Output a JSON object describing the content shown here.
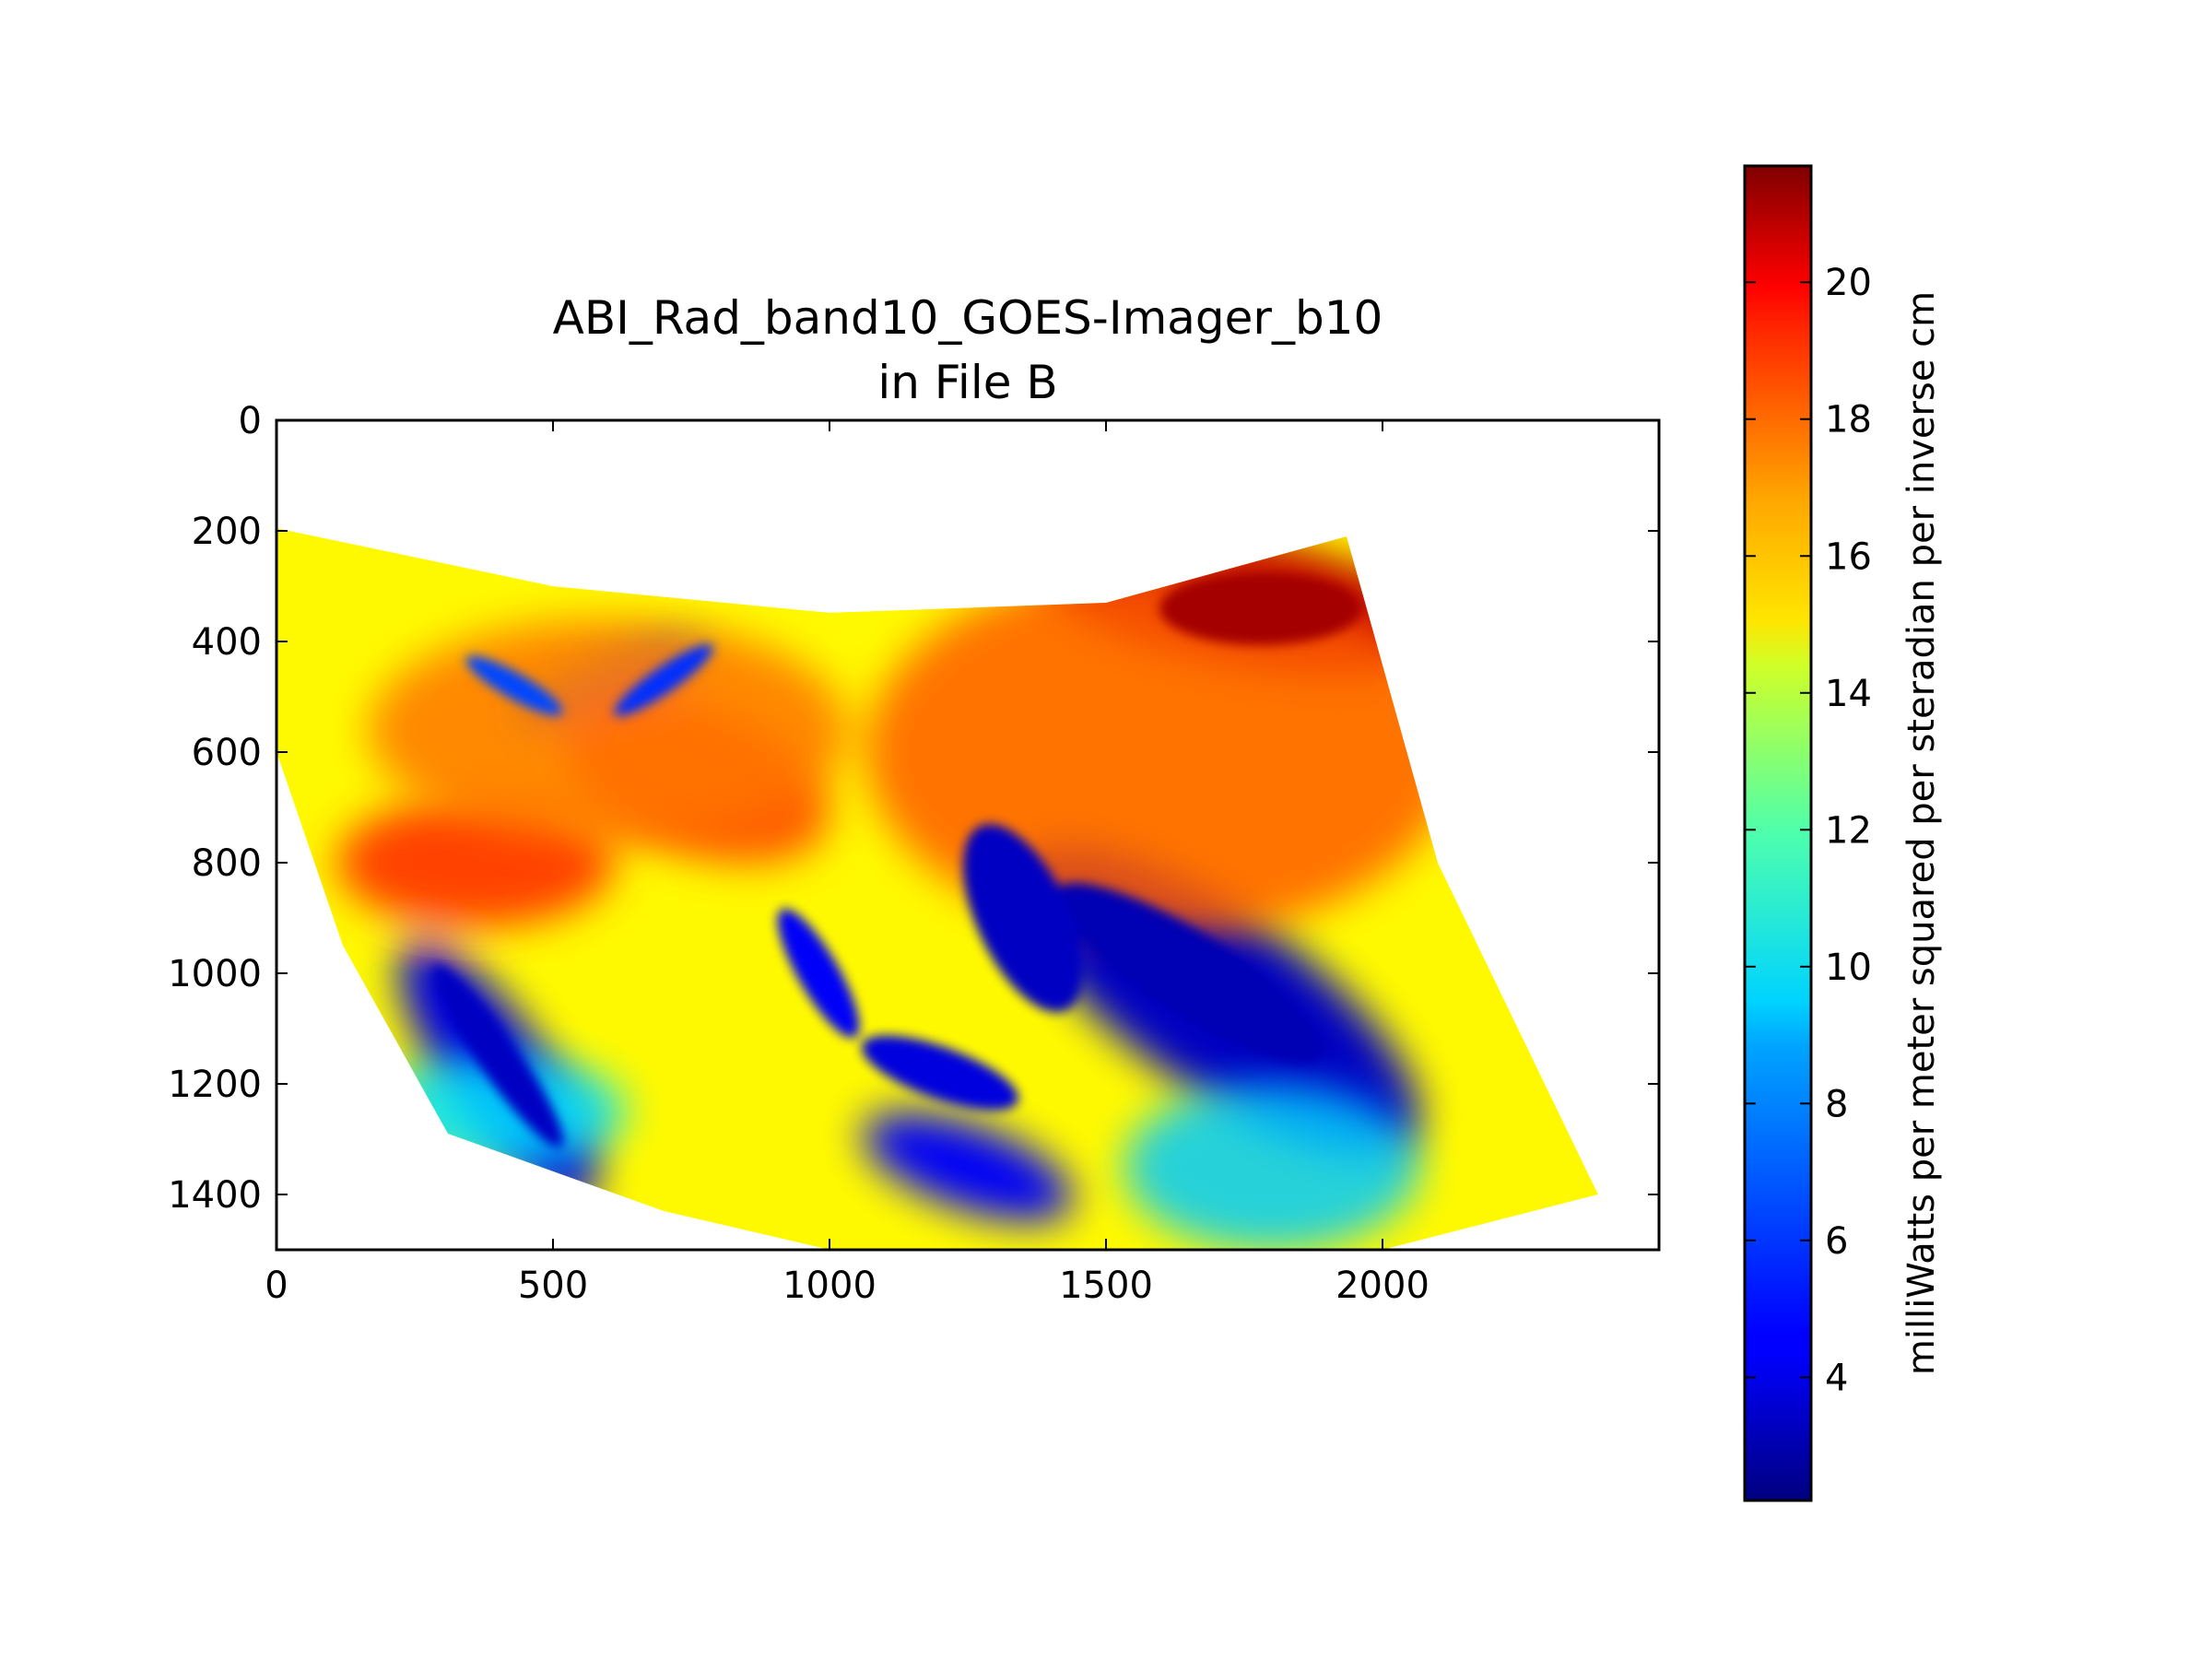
{
  "chart_data": {
    "type": "heatmap",
    "title": "ABI_Rad_band10_GOES-Imager_b10",
    "subtitle": "in File B",
    "xlabel": "",
    "ylabel": "",
    "xlim": [
      0,
      2500
    ],
    "ylim": [
      1500,
      0
    ],
    "y_axis_inverted": true,
    "x_ticks": [
      0,
      500,
      1000,
      1500,
      2000
    ],
    "y_ticks": [
      0,
      200,
      400,
      600,
      800,
      1000,
      1200,
      1400
    ],
    "colormap": "jet",
    "colorbar": {
      "label": "milliWatts per meter squared per steradian per inverse cm",
      "range": [
        2.2,
        21.7
      ],
      "ticks": [
        4,
        6,
        8,
        10,
        12,
        14,
        16,
        18,
        20
      ],
      "placement": "right"
    },
    "swath": {
      "top_edge": [
        [
          0,
          195
        ],
        [
          500,
          300
        ],
        [
          1000,
          348
        ],
        [
          1500,
          330
        ],
        [
          1935,
          210
        ]
      ],
      "right_edge": [
        [
          1935,
          210
        ],
        [
          2100,
          800
        ],
        [
          2390,
          1400
        ]
      ],
      "bottom_edge": [
        [
          2390,
          1400
        ],
        [
          2000,
          1500
        ],
        [
          1000,
          1500
        ],
        [
          700,
          1430
        ],
        [
          310,
          1290
        ]
      ],
      "left_edge": [
        [
          310,
          1290
        ],
        [
          120,
          950
        ],
        [
          0,
          600
        ]
      ]
    },
    "features": [
      {
        "name": "cold cloud band (east)",
        "level": 3.5,
        "center": [
          1700,
          1050
        ]
      },
      {
        "name": "cold cloud band (southwest)",
        "level": 4.0,
        "center": [
          400,
          1180
        ]
      },
      {
        "name": "cold cloud cluster (south)",
        "level": 4.5,
        "center": [
          1250,
          1350
        ]
      },
      {
        "name": "northern cloud streaks",
        "level": 6.5,
        "center": [
          600,
          480
        ]
      },
      {
        "name": "warm region (northeast)",
        "level": 20.5,
        "center": [
          1750,
          330
        ]
      },
      {
        "name": "warm region (west)",
        "level": 18.0,
        "center": [
          360,
          800
        ]
      },
      {
        "name": "warm region (center)",
        "level": 17.5,
        "center": [
          760,
          650
        ]
      }
    ]
  }
}
